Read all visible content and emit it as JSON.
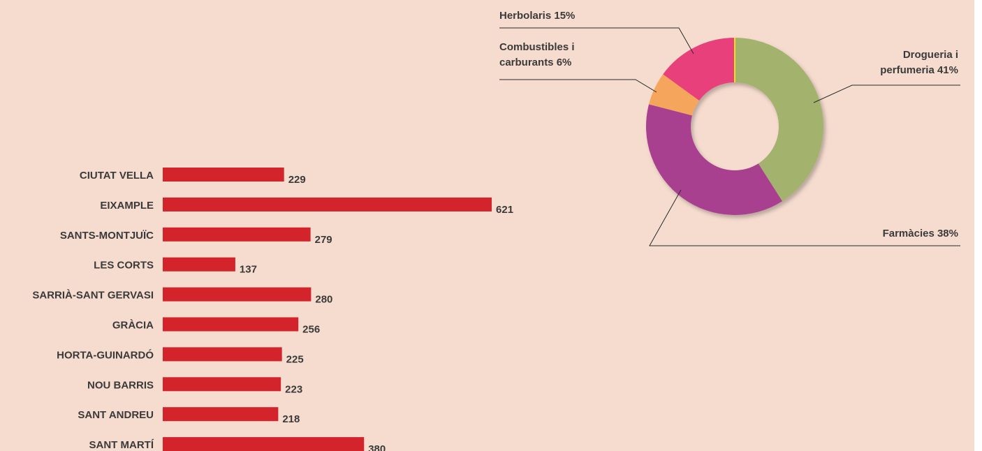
{
  "chart_data": [
    {
      "type": "donut",
      "categories": [
        "Drogueria i perfumeria",
        "Farmàcies",
        "Combustibles i carburants",
        "Herbolaris"
      ],
      "values": [
        41,
        38,
        6,
        15
      ],
      "value_labels": [
        "41%",
        "38%",
        "6%",
        "15%"
      ],
      "colors": [
        "#a3b36e",
        "#a8408f",
        "#f5a65b",
        "#e8407a"
      ]
    },
    {
      "type": "hbar",
      "categories": [
        "CIUTAT VELLA",
        "EIXAMPLE",
        "SANTS-MONTJUÏC",
        "LES CORTS",
        "SARRIÀ-SANT GERVASI",
        "GRÀCIA",
        "HORTA-GUINARDÓ",
        "NOU BARRIS",
        "SANT ANDREU",
        "SANT MARTÍ"
      ],
      "values": [
        229,
        621,
        279,
        137,
        280,
        256,
        225,
        223,
        218,
        380
      ],
      "color": "#d3232b"
    }
  ]
}
